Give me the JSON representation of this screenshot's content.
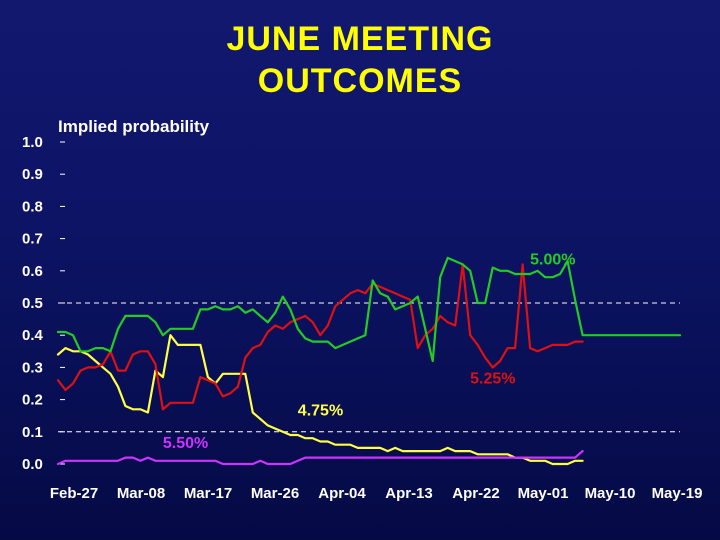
{
  "slide": {
    "title_line1": "JUNE MEETING",
    "title_line2": "OUTCOMES"
  },
  "chart_data": {
    "type": "line",
    "title": "JUNE MEETING OUTCOMES",
    "ylabel": "Implied probability",
    "xlabel": "",
    "ylim": [
      0,
      1
    ],
    "yticks": [
      "0.0",
      "0.1",
      "0.2",
      "0.3",
      "0.4",
      "0.5",
      "0.6",
      "0.7",
      "0.8",
      "0.9",
      "1.0"
    ],
    "xticks": [
      "Feb-27",
      "Mar-08",
      "Mar-17",
      "Mar-26",
      "Apr-04",
      "Apr-13",
      "Apr-22",
      "May-01",
      "May-10",
      "May-19"
    ],
    "dashed_reference_lines": [
      0.5,
      0.1
    ],
    "series": [
      {
        "name": "5.00%",
        "color": "#22cc22",
        "x": [
          0,
          1,
          2,
          3,
          4,
          5,
          6,
          7,
          8,
          9,
          10,
          11,
          12,
          13,
          14,
          15,
          16,
          17,
          18,
          19,
          20,
          21,
          22,
          23,
          24,
          25,
          26,
          27,
          28,
          29,
          30,
          31,
          32,
          33,
          34,
          35,
          36,
          37,
          38,
          39,
          40,
          41,
          42,
          43,
          44,
          45,
          46,
          47,
          48,
          49,
          50,
          51,
          52,
          53,
          54,
          55,
          56,
          57,
          58,
          59,
          60,
          61,
          62,
          63,
          64,
          65,
          66,
          67,
          68,
          69,
          70,
          71,
          72,
          73,
          74,
          75,
          76,
          77,
          78,
          79,
          80,
          81,
          82,
          83
        ],
        "values": [
          0.41,
          0.41,
          0.4,
          0.35,
          0.35,
          0.36,
          0.36,
          0.35,
          0.42,
          0.46,
          0.46,
          0.46,
          0.46,
          0.44,
          0.4,
          0.42,
          0.42,
          0.42,
          0.42,
          0.48,
          0.48,
          0.49,
          0.48,
          0.48,
          0.49,
          0.47,
          0.48,
          0.46,
          0.44,
          0.47,
          0.52,
          0.48,
          0.42,
          0.39,
          0.38,
          0.38,
          0.38,
          0.36,
          0.37,
          0.38,
          0.39,
          0.4,
          0.57,
          0.53,
          0.52,
          0.48,
          0.49,
          0.5,
          0.52,
          0.42,
          0.32,
          0.58,
          0.64,
          0.63,
          0.62,
          0.6,
          0.5,
          0.5,
          0.61,
          0.6,
          0.6,
          0.59,
          0.59,
          0.59,
          0.6,
          0.58,
          0.58,
          0.59,
          0.63,
          0.51,
          0.4,
          0.4,
          0.4,
          0.4,
          0.4,
          0.4,
          0.4,
          0.4,
          0.4,
          0.4,
          0.4,
          0.4,
          0.4,
          0.4
        ]
      },
      {
        "name": "5.25%",
        "color": "#dd1111",
        "x": [
          0,
          1,
          2,
          3,
          4,
          5,
          6,
          7,
          8,
          9,
          10,
          11,
          12,
          13,
          14,
          15,
          16,
          17,
          18,
          19,
          20,
          21,
          22,
          23,
          24,
          25,
          26,
          27,
          28,
          29,
          30,
          31,
          32,
          33,
          34,
          35,
          36,
          37,
          38,
          39,
          40,
          41,
          42,
          43,
          44,
          45,
          46,
          47,
          48,
          49,
          50,
          51,
          52,
          53,
          54,
          55,
          56,
          57,
          58,
          59,
          60,
          61,
          62,
          63,
          64,
          65,
          66,
          67,
          68,
          69,
          70
        ],
        "values": [
          0.26,
          0.23,
          0.25,
          0.29,
          0.3,
          0.3,
          0.31,
          0.35,
          0.29,
          0.29,
          0.34,
          0.35,
          0.35,
          0.31,
          0.17,
          0.19,
          0.19,
          0.19,
          0.19,
          0.27,
          0.26,
          0.25,
          0.21,
          0.22,
          0.24,
          0.33,
          0.36,
          0.37,
          0.41,
          0.43,
          0.42,
          0.44,
          0.45,
          0.46,
          0.44,
          0.4,
          0.43,
          0.49,
          0.51,
          0.53,
          0.54,
          0.53,
          0.56,
          0.55,
          0.54,
          0.53,
          0.52,
          0.51,
          0.36,
          0.4,
          0.42,
          0.46,
          0.44,
          0.43,
          0.62,
          0.4,
          0.37,
          0.33,
          0.3,
          0.32,
          0.36,
          0.36,
          0.62,
          0.36,
          0.35,
          0.36,
          0.37,
          0.37,
          0.37,
          0.38,
          0.38
        ]
      },
      {
        "name": "4.75%",
        "color": "#ffff44",
        "x": [
          0,
          1,
          2,
          3,
          4,
          5,
          6,
          7,
          8,
          9,
          10,
          11,
          12,
          13,
          14,
          15,
          16,
          17,
          18,
          19,
          20,
          21,
          22,
          23,
          24,
          25,
          26,
          27,
          28,
          29,
          30,
          31,
          32,
          33,
          34,
          35,
          36,
          37,
          38,
          39,
          40,
          41,
          42,
          43,
          44,
          45,
          46,
          47,
          48,
          49,
          50,
          51,
          52,
          53,
          54,
          55,
          56,
          57,
          58,
          59,
          60,
          61,
          62,
          63,
          64,
          65,
          66,
          67,
          68,
          69,
          70
        ],
        "values": [
          0.34,
          0.36,
          0.35,
          0.35,
          0.34,
          0.32,
          0.3,
          0.28,
          0.24,
          0.18,
          0.17,
          0.17,
          0.16,
          0.29,
          0.27,
          0.4,
          0.37,
          0.37,
          0.37,
          0.37,
          0.27,
          0.25,
          0.28,
          0.28,
          0.28,
          0.28,
          0.16,
          0.14,
          0.12,
          0.11,
          0.1,
          0.09,
          0.09,
          0.08,
          0.08,
          0.07,
          0.07,
          0.06,
          0.06,
          0.06,
          0.05,
          0.05,
          0.05,
          0.05,
          0.04,
          0.05,
          0.04,
          0.04,
          0.04,
          0.04,
          0.04,
          0.04,
          0.05,
          0.04,
          0.04,
          0.04,
          0.03,
          0.03,
          0.03,
          0.03,
          0.03,
          0.02,
          0.02,
          0.01,
          0.01,
          0.01,
          0.0,
          0.0,
          0.0,
          0.01,
          0.01
        ]
      },
      {
        "name": "5.50%",
        "color": "#cc33ff",
        "x": [
          0,
          1,
          2,
          3,
          4,
          5,
          6,
          7,
          8,
          9,
          10,
          11,
          12,
          13,
          14,
          15,
          16,
          17,
          18,
          19,
          20,
          21,
          22,
          23,
          24,
          25,
          26,
          27,
          28,
          29,
          30,
          31,
          32,
          33,
          34,
          35,
          36,
          37,
          38,
          39,
          40,
          41,
          42,
          43,
          44,
          45,
          46,
          47,
          48,
          49,
          50,
          51,
          52,
          53,
          54,
          55,
          56,
          57,
          58,
          59,
          60,
          61,
          62,
          63,
          64,
          65,
          66,
          67,
          68,
          69,
          70
        ],
        "values": [
          0.0,
          0.01,
          0.01,
          0.01,
          0.01,
          0.01,
          0.01,
          0.01,
          0.01,
          0.02,
          0.02,
          0.01,
          0.02,
          0.01,
          0.01,
          0.01,
          0.01,
          0.01,
          0.01,
          0.01,
          0.01,
          0.01,
          0.0,
          0.0,
          0.0,
          0.0,
          0.0,
          0.01,
          0.0,
          0.0,
          0.0,
          0.0,
          0.01,
          0.02,
          0.02,
          0.02,
          0.02,
          0.02,
          0.02,
          0.02,
          0.02,
          0.02,
          0.02,
          0.02,
          0.02,
          0.02,
          0.02,
          0.02,
          0.02,
          0.02,
          0.02,
          0.02,
          0.02,
          0.02,
          0.02,
          0.02,
          0.02,
          0.02,
          0.02,
          0.02,
          0.02,
          0.02,
          0.02,
          0.02,
          0.02,
          0.02,
          0.02,
          0.02,
          0.02,
          0.02,
          0.04
        ]
      }
    ],
    "annotations": [
      {
        "text": "5.00%",
        "series": "5.00%",
        "x": 63,
        "y": 0.62
      },
      {
        "text": "5.25%",
        "series": "5.25%",
        "x": 55,
        "y": 0.25
      },
      {
        "text": "4.75%",
        "series": "4.75%",
        "x": 32,
        "y": 0.15
      },
      {
        "text": "5.50%",
        "series": "5.50%",
        "x": 14,
        "y": 0.05
      }
    ]
  }
}
